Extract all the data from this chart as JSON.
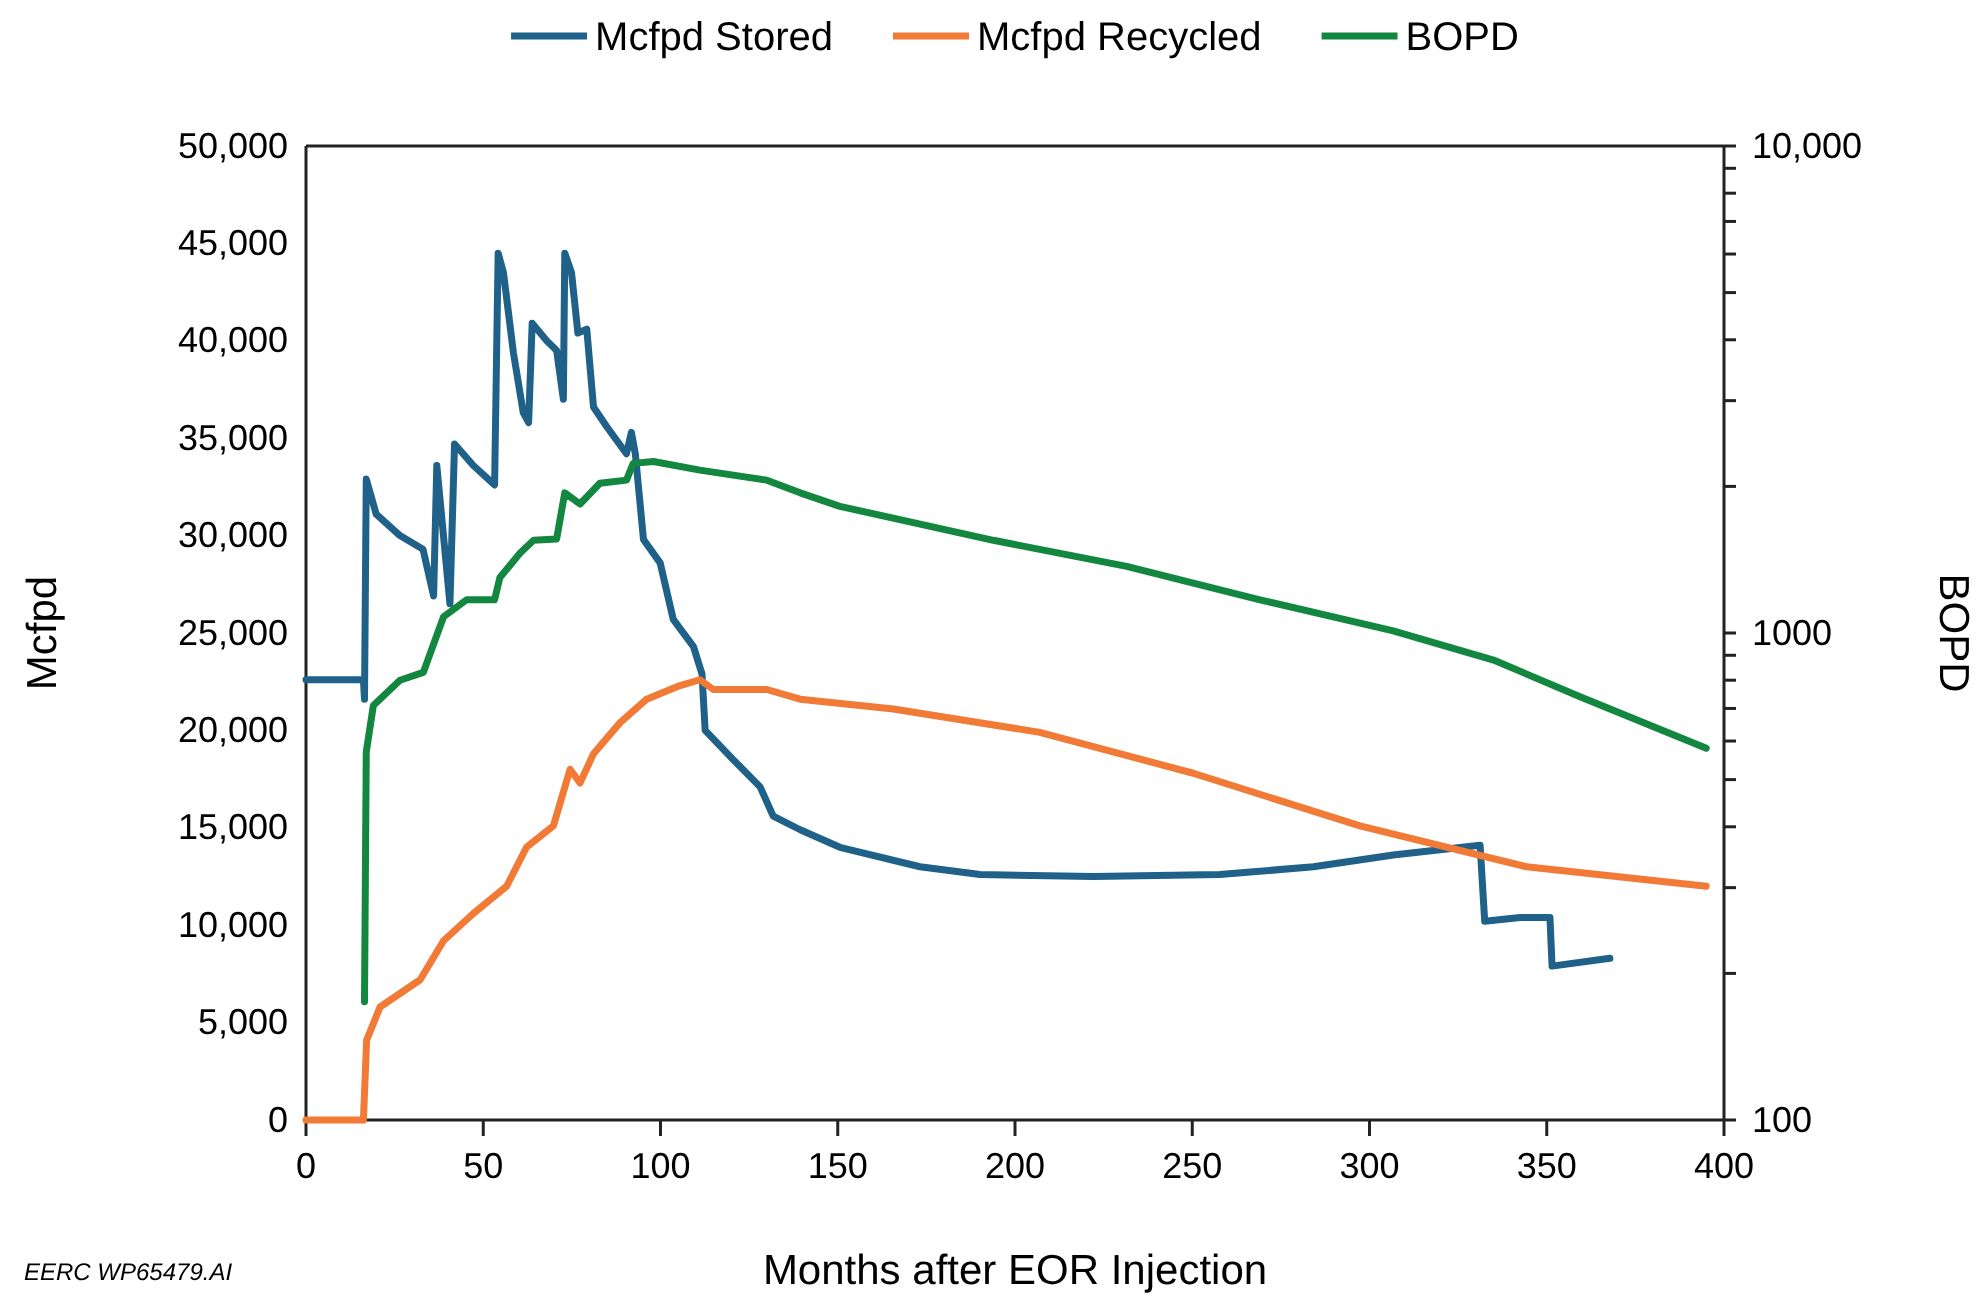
{
  "chart_data": {
    "type": "line",
    "xlabel": "Months after EOR Injection",
    "ylabel": "Mcfpd",
    "y2label": "BOPD",
    "legend": "top",
    "log": "y2",
    "line_style": "solid",
    "marker": "none",
    "xlim": [
      0,
      400
    ],
    "xticks": [
      0,
      50,
      100,
      150,
      200,
      250,
      300,
      350,
      400
    ],
    "ylim": [
      0,
      50000
    ],
    "yticks": [
      0,
      {
        "value": 5000,
        "label": "5,000"
      },
      {
        "value": 10000,
        "label": "10,000"
      },
      {
        "value": 15000,
        "label": "15,000"
      },
      {
        "value": 20000,
        "label": "20,000"
      },
      {
        "value": 25000,
        "label": "25,000"
      },
      {
        "value": 30000,
        "label": "30,000"
      },
      {
        "value": 35000,
        "label": "35,000"
      },
      {
        "value": 40000,
        "label": "40,000"
      },
      {
        "value": 45000,
        "label": "45,000"
      },
      {
        "value": 50000,
        "label": "50,000"
      }
    ],
    "y2lim": [
      100,
      10000
    ],
    "y2ticks": [
      100,
      {
        "value": 200,
        "label": null
      },
      {
        "value": 300,
        "label": null
      },
      {
        "value": 400,
        "label": null
      },
      {
        "value": 500,
        "label": null
      },
      {
        "value": 600,
        "label": null
      },
      {
        "value": 700,
        "label": null
      },
      {
        "value": 800,
        "label": null
      },
      {
        "value": 900,
        "label": null
      },
      1000,
      {
        "value": 2000,
        "label": null
      },
      {
        "value": 3000,
        "label": null
      },
      {
        "value": 4000,
        "label": null
      },
      {
        "value": 5000,
        "label": null
      },
      {
        "value": 6000,
        "label": null
      },
      {
        "value": 7000,
        "label": null
      },
      {
        "value": 8000,
        "label": null
      },
      {
        "value": 9000,
        "label": null
      },
      {
        "value": 10000,
        "label": "10,000"
      }
    ],
    "annotations": [
      "EERC WP65479.AI"
    ],
    "series": [
      {
        "name": "Mcfpd Stored",
        "color": "#1f6189",
        "x": [
          0,
          16.2,
          16.5,
          17,
          19.8,
          26.5,
          33,
          36,
          36.9,
          40.6,
          41.9,
          47.2,
          53.2,
          54.2,
          55.7,
          58.5,
          61.3,
          62.8,
          63.8,
          67.9,
          70.7,
          72.6,
          73,
          74.9,
          76.7,
          79.2,
          81.1,
          84.8,
          90.4,
          91.8,
          92.9,
          95.2,
          99.9,
          103.6,
          109.3,
          111.7,
          112.6,
          120.5,
          128.1,
          131.8,
          139.4,
          150.6,
          173.2,
          190.1,
          222.1,
          257.8,
          284.2,
          306.7,
          331.2,
          332.5,
          342.5,
          350.9,
          351.5,
          367.8
        ],
        "values": [
          22600,
          22600,
          21600,
          32900,
          31100,
          30000,
          29300,
          26900,
          33600,
          26500,
          34700,
          33600,
          32600,
          44500,
          43500,
          39400,
          36300,
          35800,
          40900,
          40000,
          39500,
          37000,
          44500,
          43500,
          40400,
          40600,
          36600,
          35600,
          34200,
          35300,
          34200,
          29800,
          28600,
          25700,
          24300,
          22900,
          20000,
          18500,
          17100,
          15600,
          14900,
          14000,
          13000,
          12600,
          12500,
          12600,
          13000,
          13600,
          14100,
          10200,
          10400,
          10400,
          7900,
          8300
        ]
      },
      {
        "name": "Mcfpd Recycled",
        "color": "#f07a36",
        "x": [
          0,
          16.2,
          17.1,
          20.9,
          32.2,
          38.8,
          47.2,
          56.6,
          62.2,
          69.8,
          74.5,
          77.3,
          81.1,
          88.6,
          96.1,
          105.5,
          111.1,
          114.9,
          130,
          139.4,
          165.7,
          207,
          250.3,
          297.3,
          344.3,
          395
        ],
        "values": [
          0,
          0,
          4100,
          5800,
          7200,
          9200,
          10600,
          12000,
          14000,
          15100,
          18000,
          17300,
          18800,
          20400,
          21600,
          22300,
          22600,
          22100,
          22100,
          21600,
          21100,
          19900,
          17800,
          15100,
          13000,
          12000
        ]
      },
      {
        "name": "BOPD",
        "color": "#13873f",
        "axis": "y2",
        "x": [
          16.5,
          17,
          19,
          26.5,
          33.1,
          38.8,
          45.3,
          53.2,
          54.7,
          60.4,
          64.2,
          70.7,
          73,
          77.3,
          82.9,
          90.4,
          92.3,
          98,
          111.1,
          130,
          139.4,
          150.6,
          193.9,
          231.5,
          269.1,
          306.7,
          335,
          359.4,
          395
        ],
        "values": [
          175,
          570,
          710,
          800,
          830,
          1080,
          1170,
          1170,
          1300,
          1460,
          1550,
          1560,
          1940,
          1840,
          2030,
          2060,
          2230,
          2250,
          2160,
          2060,
          1940,
          1820,
          1550,
          1370,
          1170,
          1010,
          880,
          740,
          580
        ]
      }
    ]
  }
}
